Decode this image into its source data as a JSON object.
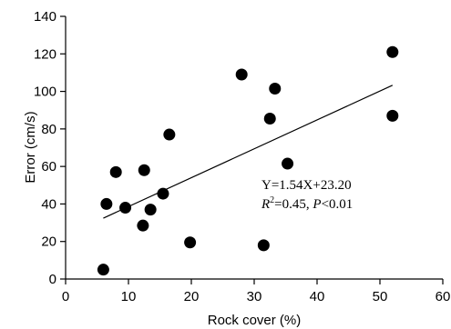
{
  "chart_data": {
    "type": "scatter",
    "xlabel": "Rock cover (%)",
    "ylabel": "Error (cm/s)",
    "xlim": [
      0,
      60
    ],
    "ylim": [
      0,
      140
    ],
    "x_ticks": [
      0,
      10,
      20,
      30,
      40,
      50,
      60
    ],
    "y_ticks": [
      0,
      20,
      40,
      60,
      80,
      100,
      120,
      140
    ],
    "grid": false,
    "points": [
      {
        "x": 6.0,
        "y": 5
      },
      {
        "x": 6.5,
        "y": 40
      },
      {
        "x": 8.0,
        "y": 57
      },
      {
        "x": 9.5,
        "y": 38
      },
      {
        "x": 12.3,
        "y": 28.5
      },
      {
        "x": 12.5,
        "y": 58
      },
      {
        "x": 13.5,
        "y": 37
      },
      {
        "x": 15.5,
        "y": 45.5
      },
      {
        "x": 16.5,
        "y": 77
      },
      {
        "x": 19.8,
        "y": 19.5
      },
      {
        "x": 28.0,
        "y": 109
      },
      {
        "x": 31.5,
        "y": 18
      },
      {
        "x": 32.5,
        "y": 85.5
      },
      {
        "x": 33.3,
        "y": 101.5
      },
      {
        "x": 35.3,
        "y": 61.5
      },
      {
        "x": 52.0,
        "y": 121
      },
      {
        "x": 52.0,
        "y": 87
      }
    ],
    "fit_line": {
      "slope": 1.54,
      "intercept": 23.2,
      "x_range": [
        6.0,
        52.0
      ]
    },
    "annotations": {
      "equation": "Y=1.54X+23.20",
      "r2_label": "R",
      "r2_sup": "2",
      "r2_value": "=0.45, ",
      "p_label": "P",
      "p_value": "<0.01"
    }
  }
}
